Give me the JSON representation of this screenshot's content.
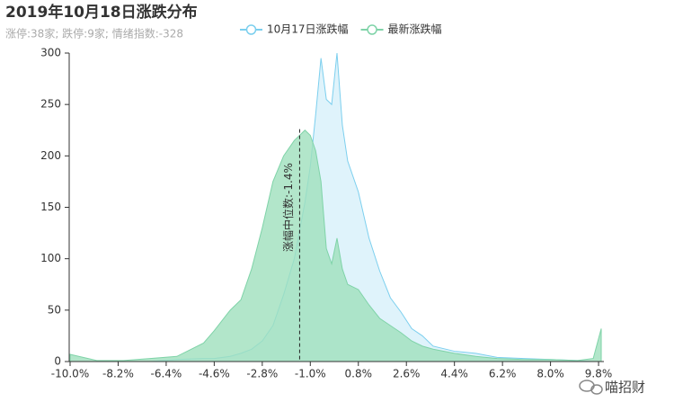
{
  "chart_data": {
    "type": "area",
    "title": "2019年10月18日涨跌分布",
    "subtitle": "涨停:38家; 跌停:9家; 情绪指数:-328",
    "x": [
      -10,
      -9,
      -8,
      -7,
      -6,
      -5,
      -4.6,
      -4,
      -3.6,
      -3.2,
      -2.8,
      -2.4,
      -2.0,
      -1.6,
      -1.2,
      -1.0,
      -0.8,
      -0.6,
      -0.4,
      -0.2,
      0.0,
      0.2,
      0.4,
      0.8,
      1.2,
      1.6,
      2.0,
      2.4,
      2.8,
      3.2,
      3.6,
      4.4,
      5.2,
      6.0,
      7.0,
      8.0,
      9.0,
      9.6,
      9.9
    ],
    "series": [
      {
        "name": "10月17日涨跌幅",
        "color": "#7ccfee",
        "fill": "#dff3fb",
        "values": [
          0,
          0,
          0,
          0,
          2,
          3,
          3,
          5,
          8,
          12,
          20,
          35,
          65,
          100,
          155,
          190,
          240,
          295,
          255,
          250,
          300,
          230,
          195,
          165,
          120,
          88,
          62,
          48,
          32,
          25,
          15,
          10,
          8,
          4,
          3,
          2,
          1,
          0,
          0
        ]
      },
      {
        "name": "最新涨跌幅",
        "color": "#7fd3a8",
        "fill": "#9fe0bd",
        "values": [
          7,
          1,
          1,
          3,
          5,
          18,
          30,
          50,
          60,
          90,
          130,
          175,
          200,
          215,
          225,
          220,
          205,
          175,
          110,
          95,
          120,
          90,
          75,
          70,
          55,
          42,
          35,
          28,
          20,
          15,
          12,
          8,
          5,
          3,
          2,
          2,
          1,
          3,
          32
        ]
      }
    ],
    "xlim": [
      -10,
      10
    ],
    "xticks": [
      {
        "value": -10,
        "label": "-10.0%"
      },
      {
        "value": -8.2,
        "label": "-8.2%"
      },
      {
        "value": -6.4,
        "label": "-6.4%"
      },
      {
        "value": -4.6,
        "label": "-4.6%"
      },
      {
        "value": -2.8,
        "label": "-2.8%"
      },
      {
        "value": -1.0,
        "label": "-1.0%"
      },
      {
        "value": 0.8,
        "label": "0.8%"
      },
      {
        "value": 2.6,
        "label": "2.6%"
      },
      {
        "value": 4.4,
        "label": "4.4%"
      },
      {
        "value": 6.2,
        "label": "6.2%"
      },
      {
        "value": 8.0,
        "label": "8.0%"
      },
      {
        "value": 9.8,
        "label": "9.8%"
      }
    ],
    "ylim": [
      0,
      300
    ],
    "yticks": [
      0,
      50,
      100,
      150,
      200,
      250,
      300
    ],
    "median": -1.4,
    "median_label": "涨幅中位数:-1.4%",
    "watermark": "喵招财"
  }
}
